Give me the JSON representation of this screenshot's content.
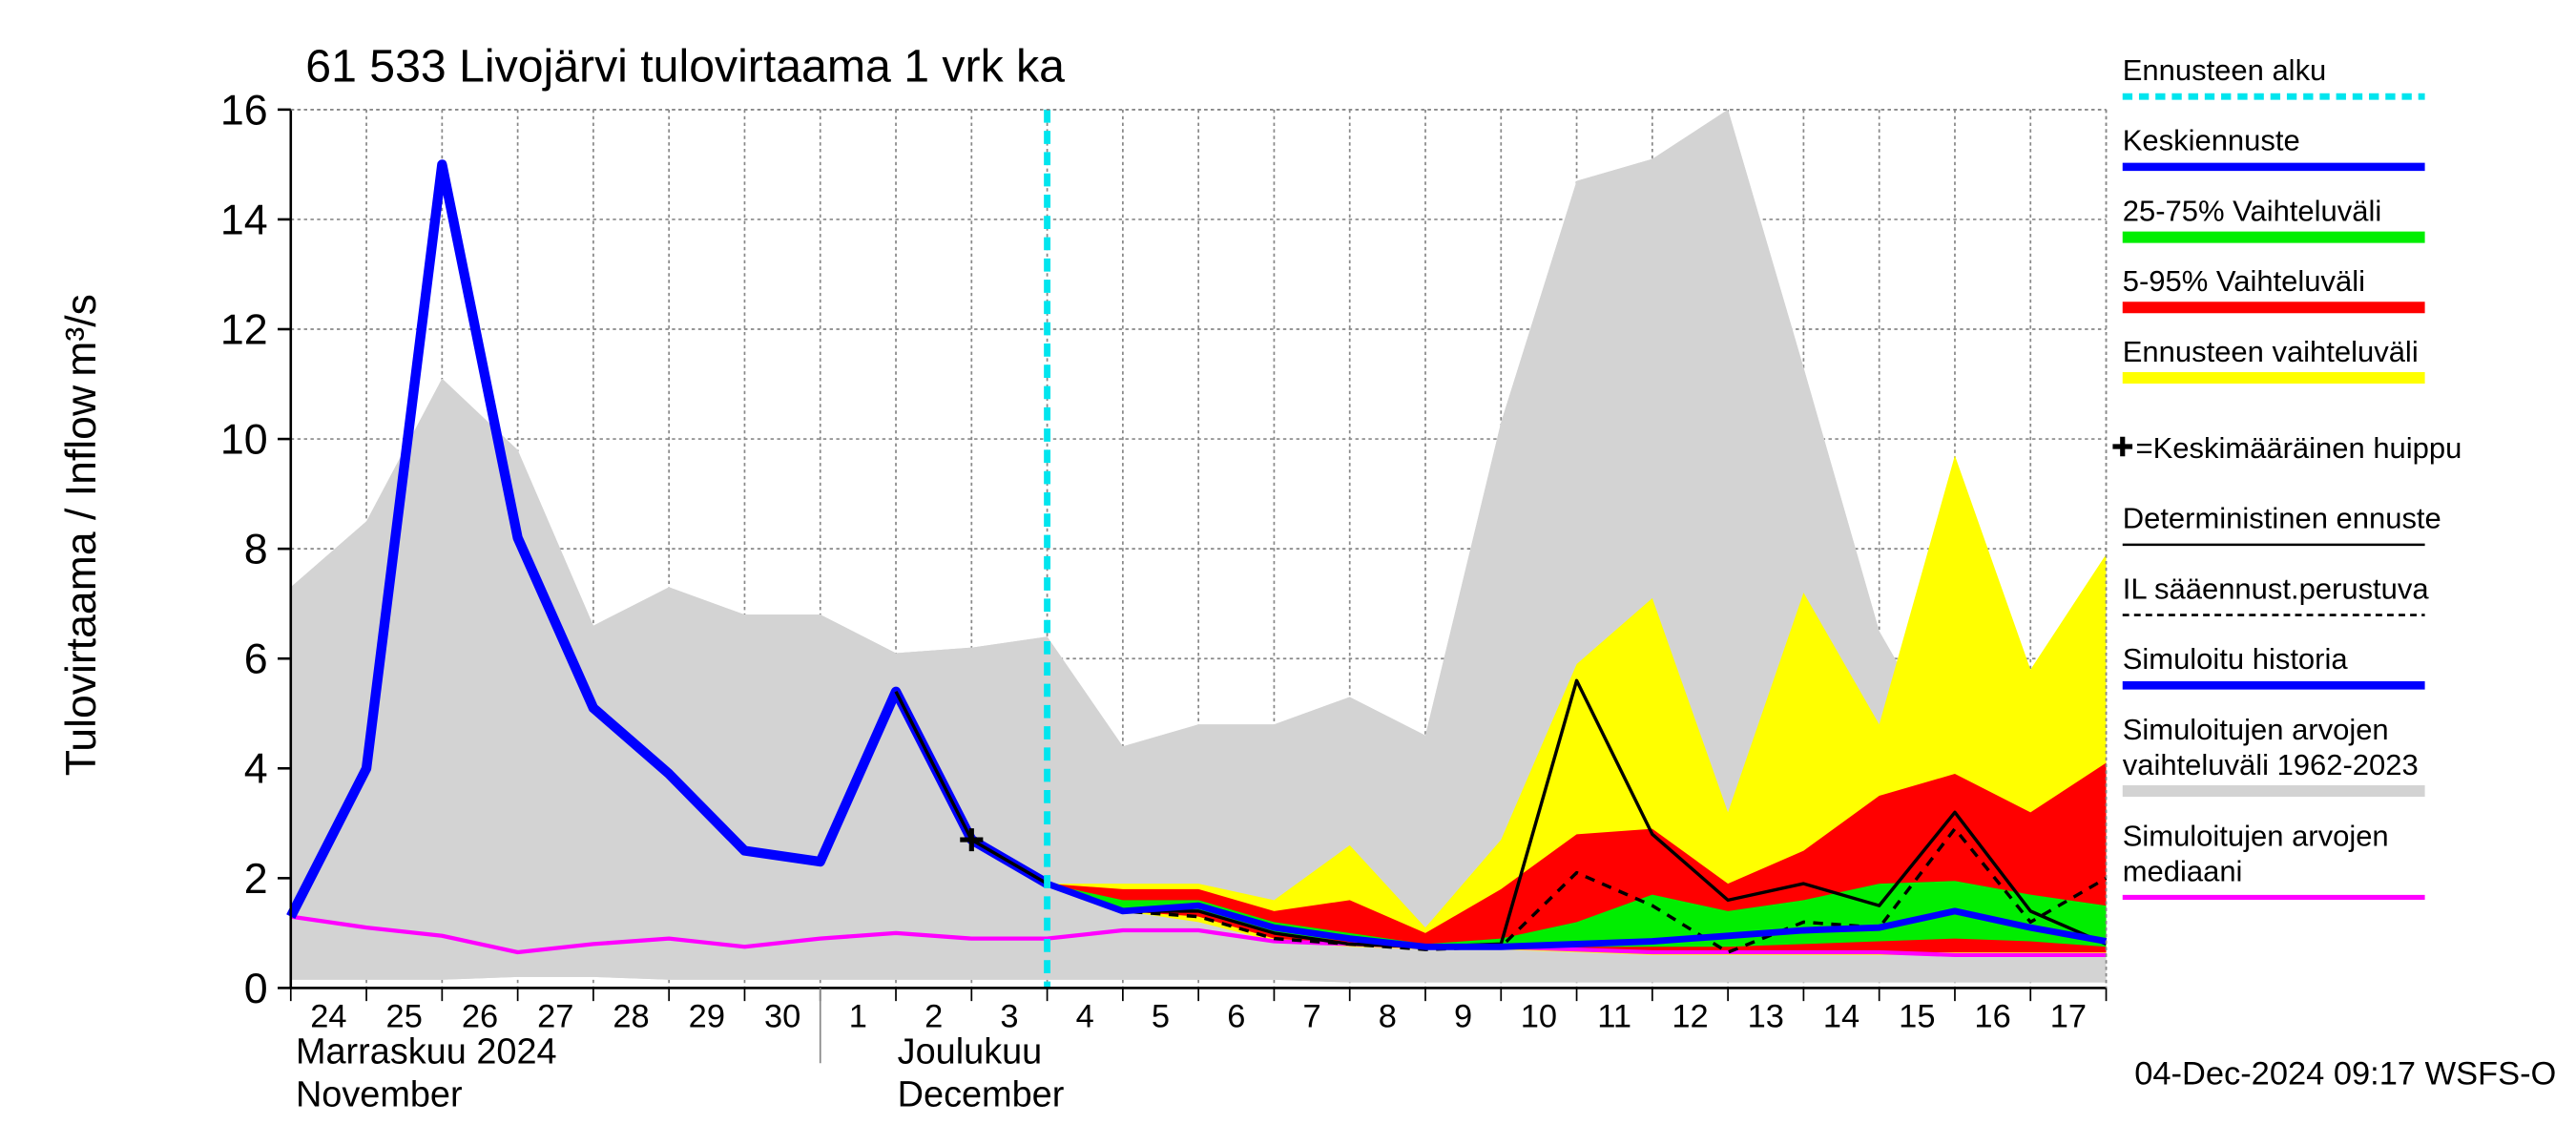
{
  "chart_data": {
    "type": "forecast",
    "title": "61 533 Livojärvi tulovirtaama 1 vrk ka",
    "y_label": "Tulovirtaama / Inflow",
    "y_unit": "m³/s",
    "footer": "04-Dec-2024 09:17 WSFS-O",
    "months": [
      "Marraskuu 2024\nNovember",
      "Joulukuu\nDecember"
    ],
    "categories": [
      "24",
      "25",
      "26",
      "27",
      "28",
      "29",
      "30",
      "1",
      "2",
      "3",
      "4",
      "5",
      "6",
      "7",
      "8",
      "9",
      "10",
      "11",
      "12",
      "13",
      "14",
      "15",
      "16",
      "17",
      null
    ],
    "ylim": [
      0,
      16
    ],
    "yticks": [
      0,
      2,
      4,
      6,
      8,
      10,
      12,
      14,
      16
    ],
    "grid": true,
    "forecast_start": {
      "name": "Ennusteen alku",
      "color": "#00e5ee",
      "x": 10
    },
    "peak": {
      "name": "=Keskimääräinen huippu",
      "x": 9,
      "value": 2.7
    },
    "series": [
      {
        "name": "Keskiennuste",
        "style": "line",
        "width": 4,
        "color": "#0000ff",
        "values": [
          null,
          null,
          null,
          null,
          null,
          null,
          null,
          null,
          null,
          null,
          1.9,
          1.4,
          1.5,
          1.1,
          0.9,
          0.75,
          0.75,
          0.8,
          0.85,
          0.95,
          1.05,
          1.1,
          1.4,
          1.1,
          0.85
        ]
      },
      {
        "name": "25-75% Vaihteluväli",
        "style": "band",
        "color": "#00ee00",
        "values": [
          null,
          null,
          null,
          null,
          null,
          null,
          null,
          null,
          null,
          null,
          1.9,
          1.6,
          1.6,
          1.2,
          1.0,
          0.8,
          0.9,
          1.2,
          1.7,
          1.4,
          1.6,
          1.9,
          1.95,
          1.7,
          1.5
        ],
        "lower": [
          null,
          null,
          null,
          null,
          null,
          null,
          null,
          null,
          null,
          null,
          1.9,
          1.4,
          1.4,
          1.0,
          0.85,
          0.75,
          0.75,
          0.75,
          0.75,
          0.75,
          0.8,
          0.85,
          0.9,
          0.85,
          0.75
        ]
      },
      {
        "name": "5-95% Vaihteluväli",
        "style": "band",
        "color": "#ff0000",
        "values": [
          null,
          null,
          null,
          null,
          null,
          null,
          null,
          null,
          null,
          null,
          1.9,
          1.8,
          1.8,
          1.4,
          1.6,
          1.0,
          1.8,
          2.8,
          2.9,
          1.9,
          2.5,
          3.5,
          3.9,
          3.2,
          4.1
        ],
        "lower": [
          null,
          null,
          null,
          null,
          null,
          null,
          null,
          null,
          null,
          null,
          1.9,
          1.4,
          1.3,
          0.9,
          0.8,
          0.7,
          0.7,
          0.7,
          0.65,
          0.65,
          0.65,
          0.65,
          0.65,
          0.65,
          0.65
        ]
      },
      {
        "name": "Ennusteen vaihteluväli",
        "style": "band",
        "color": "#ffff00",
        "values": [
          null,
          null,
          null,
          null,
          null,
          null,
          null,
          null,
          null,
          null,
          1.9,
          1.9,
          1.9,
          1.6,
          2.6,
          1.1,
          2.7,
          5.9,
          7.1,
          3.2,
          7.2,
          4.8,
          9.7,
          5.8,
          7.9
        ],
        "lower": [
          null,
          null,
          null,
          null,
          null,
          null,
          null,
          null,
          null,
          null,
          1.9,
          1.4,
          1.2,
          0.85,
          0.75,
          0.7,
          0.7,
          0.65,
          0.6,
          0.6,
          0.6,
          0.6,
          0.6,
          0.6,
          0.6
        ]
      },
      {
        "name": "Deterministinen ennuste",
        "style": "line",
        "width": 2,
        "color": "#000000",
        "values": [
          null,
          null,
          null,
          null,
          null,
          null,
          null,
          null,
          5.4,
          2.7,
          1.9,
          1.4,
          1.4,
          1.0,
          0.8,
          0.75,
          0.8,
          5.6,
          2.8,
          1.6,
          1.9,
          1.5,
          3.2,
          1.4,
          0.8
        ]
      },
      {
        "name": "IL sääennust.perustuva",
        "style": "dashed",
        "width": 2,
        "color": "#000000",
        "values": [
          null,
          null,
          null,
          null,
          null,
          null,
          null,
          null,
          null,
          null,
          1.9,
          1.4,
          1.3,
          0.9,
          0.8,
          0.7,
          0.75,
          2.1,
          1.5,
          0.65,
          1.2,
          1.1,
          2.9,
          1.2,
          2.0
        ]
      },
      {
        "name": "Simuloitu historia",
        "style": "line",
        "width": 6,
        "color": "#0000ff",
        "values": [
          1.3,
          4.0,
          15.0,
          8.2,
          5.1,
          3.9,
          2.5,
          2.3,
          5.4,
          2.7,
          1.9,
          null,
          null,
          null,
          null,
          null,
          null,
          null,
          null,
          null,
          null,
          null,
          null,
          null,
          null
        ]
      },
      {
        "name": "Simuloitujen arvojen\nvaihteluväli 1962-2023",
        "style": "band",
        "color": "#d3d3d3",
        "values": [
          7.3,
          8.5,
          11.1,
          9.8,
          6.6,
          7.3,
          6.8,
          6.8,
          6.1,
          6.2,
          6.4,
          4.4,
          4.8,
          4.8,
          5.3,
          4.6,
          10.3,
          14.7,
          15.1,
          16.0,
          11.3,
          6.5,
          4.1,
          4.3,
          4.2
        ],
        "lower": [
          0.15,
          0.15,
          0.15,
          0.2,
          0.2,
          0.15,
          0.15,
          0.15,
          0.15,
          0.15,
          0.15,
          0.15,
          0.15,
          0.15,
          0.1,
          0.1,
          0.1,
          0.1,
          0.1,
          0.1,
          0.1,
          0.1,
          0.1,
          0.1,
          0.1
        ]
      },
      {
        "name": "Simuloitujen arvojen\nmediaani",
        "style": "line",
        "width": 2.5,
        "color": "#ff00ff",
        "values": [
          1.3,
          1.1,
          0.95,
          0.65,
          0.8,
          0.9,
          0.75,
          0.9,
          1.0,
          0.9,
          0.9,
          1.05,
          1.05,
          0.85,
          0.8,
          0.75,
          0.75,
          0.7,
          0.65,
          0.65,
          0.65,
          0.65,
          0.6,
          0.6,
          0.6
        ]
      }
    ]
  }
}
